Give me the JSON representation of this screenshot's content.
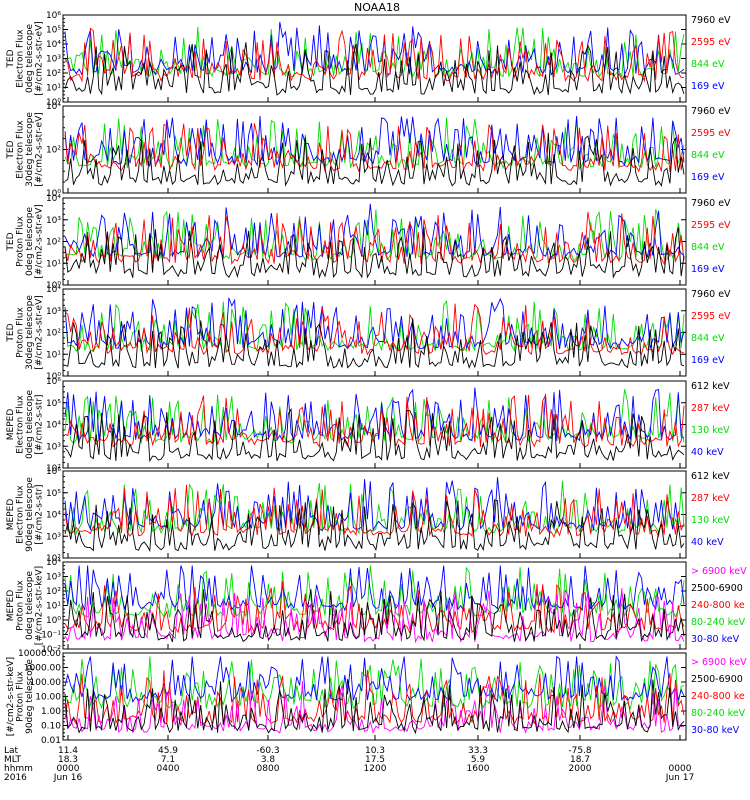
{
  "title": "NOAA18",
  "colors": {
    "black": "#000000",
    "red": "#ff0000",
    "green": "#00dd00",
    "blue": "#0000ff",
    "magenta": "#ff00ff"
  },
  "chart_data": [
    {
      "type": "line",
      "ylabel_lines": [
        "TED",
        "Electron Flux",
        "0deg telescope",
        "[#/cm2-s-str-eV]"
      ],
      "log_scale": true,
      "ytick_labels": [
        "10⁰",
        "10¹",
        "10²",
        "10³",
        "10⁴",
        "10⁵",
        "10⁶"
      ],
      "legend": [
        {
          "label": "7960 eV",
          "color": "black"
        },
        {
          "label": "2595 eV",
          "color": "red"
        },
        {
          "label": "844 eV",
          "color": "green"
        },
        {
          "label": "169 eV",
          "color": "blue"
        }
      ]
    },
    {
      "type": "line",
      "ylabel_lines": [
        "TED",
        "Electron Flux",
        "30deg telescope",
        "[#/cm2-s-str-eV]"
      ],
      "log_scale": true,
      "ytick_labels": [
        "10⁰",
        "10²",
        "10⁴"
      ],
      "legend": [
        {
          "label": "7960 eV",
          "color": "black"
        },
        {
          "label": "2595 eV",
          "color": "red"
        },
        {
          "label": "844 eV",
          "color": "green"
        },
        {
          "label": "169 eV",
          "color": "blue"
        }
      ]
    },
    {
      "type": "line",
      "ylabel_lines": [
        "TED",
        "Proton Flux",
        "0deg telescope",
        "[#/cm2-s-str-eV]"
      ],
      "log_scale": true,
      "ytick_labels": [
        "10⁰",
        "10¹",
        "10²",
        "10³",
        "10⁴"
      ],
      "legend": [
        {
          "label": "7960 eV",
          "color": "black"
        },
        {
          "label": "2595 eV",
          "color": "red"
        },
        {
          "label": "844 eV",
          "color": "green"
        },
        {
          "label": "169 eV",
          "color": "blue"
        }
      ]
    },
    {
      "type": "line",
      "ylabel_lines": [
        "TED",
        "Proton Flux",
        "30deg telescope",
        "[#/cm2-s-str-eV]"
      ],
      "log_scale": true,
      "ytick_labels": [
        "10⁰",
        "10¹",
        "10²",
        "10³",
        "10⁴"
      ],
      "legend": [
        {
          "label": "7960 eV",
          "color": "black"
        },
        {
          "label": "2595 eV",
          "color": "red"
        },
        {
          "label": "844 eV",
          "color": "green"
        },
        {
          "label": "169 eV",
          "color": "blue"
        }
      ]
    },
    {
      "type": "line",
      "ylabel_lines": [
        "MEPED",
        "Electron Flux",
        "0deg telescope",
        "[#/cm2-s-str]"
      ],
      "log_scale": true,
      "ytick_labels": [
        "10²",
        "10³",
        "10⁴",
        "10⁵",
        "10⁶"
      ],
      "legend": [
        {
          "label": "612 keV",
          "color": "black"
        },
        {
          "label": "287 keV",
          "color": "red"
        },
        {
          "label": "130 keV",
          "color": "green"
        },
        {
          "label": "40 keV",
          "color": "blue"
        }
      ]
    },
    {
      "type": "line",
      "ylabel_lines": [
        "MEPED",
        "Electron Flux",
        "90deg telescope",
        "[#/cm2-s-str]"
      ],
      "log_scale": true,
      "ytick_labels": [
        "10²",
        "10³",
        "10⁴",
        "10⁵",
        "10⁶"
      ],
      "legend": [
        {
          "label": "612 keV",
          "color": "black"
        },
        {
          "label": "287 keV",
          "color": "red"
        },
        {
          "label": "130 keV",
          "color": "green"
        },
        {
          "label": "40 keV",
          "color": "blue"
        }
      ]
    },
    {
      "type": "line",
      "ylabel_lines": [
        "MEPED",
        "Proton Flux",
        "0deg telescope",
        "[#/cm2-s-str-keV]"
      ],
      "log_scale": true,
      "ytick_labels": [
        "10⁻²",
        "10⁻¹",
        "10⁰",
        "10¹",
        "10²",
        "10³",
        "10⁴"
      ],
      "legend": [
        {
          "label": "> 6900 keV",
          "color": "magenta"
        },
        {
          "label": "2500-6900",
          "color": "black"
        },
        {
          "label": "240-800 ke",
          "color": "red"
        },
        {
          "label": "80-240 keV",
          "color": "green"
        },
        {
          "label": "30-80 keV",
          "color": "blue"
        }
      ]
    },
    {
      "type": "line",
      "ylabel_lines": [
        "[#/cm2-s-str-keV]",
        "Proton Flux",
        "90deg telescope"
      ],
      "log_scale": true,
      "ytick_labels": [
        "0.01",
        "0.10",
        "1.00",
        "10.00",
        "100.00",
        "1000.00",
        "10000.00"
      ],
      "legend": [
        {
          "label": "> 6900 keV",
          "color": "magenta"
        },
        {
          "label": "2500-6900",
          "color": "black"
        },
        {
          "label": "240-800 ke",
          "color": "red"
        },
        {
          "label": "80-240 keV",
          "color": "green"
        },
        {
          "label": "30-80 keV",
          "color": "blue"
        }
      ]
    }
  ],
  "xaxis": {
    "row_labels": [
      "Lat",
      "MLT",
      "hhmm",
      "2016"
    ],
    "ticks": [
      {
        "lat": "11.4",
        "mlt": "18.3",
        "hhmm": "0000",
        "extra": "Jun 16"
      },
      {
        "lat": "45.9",
        "mlt": "7.1",
        "hhmm": "0400",
        "extra": ""
      },
      {
        "lat": "-60.3",
        "mlt": "3.8",
        "hhmm": "0800",
        "extra": ""
      },
      {
        "lat": "10.3",
        "mlt": "17.5",
        "hhmm": "1200",
        "extra": ""
      },
      {
        "lat": "33.3",
        "mlt": "5.9",
        "hhmm": "1600",
        "extra": ""
      },
      {
        "lat": "-75.8",
        "mlt": "18.7",
        "hhmm": "2000",
        "extra": ""
      },
      {
        "lat": "",
        "mlt": "",
        "hhmm": "0000",
        "extra": "Jun 17"
      }
    ]
  }
}
